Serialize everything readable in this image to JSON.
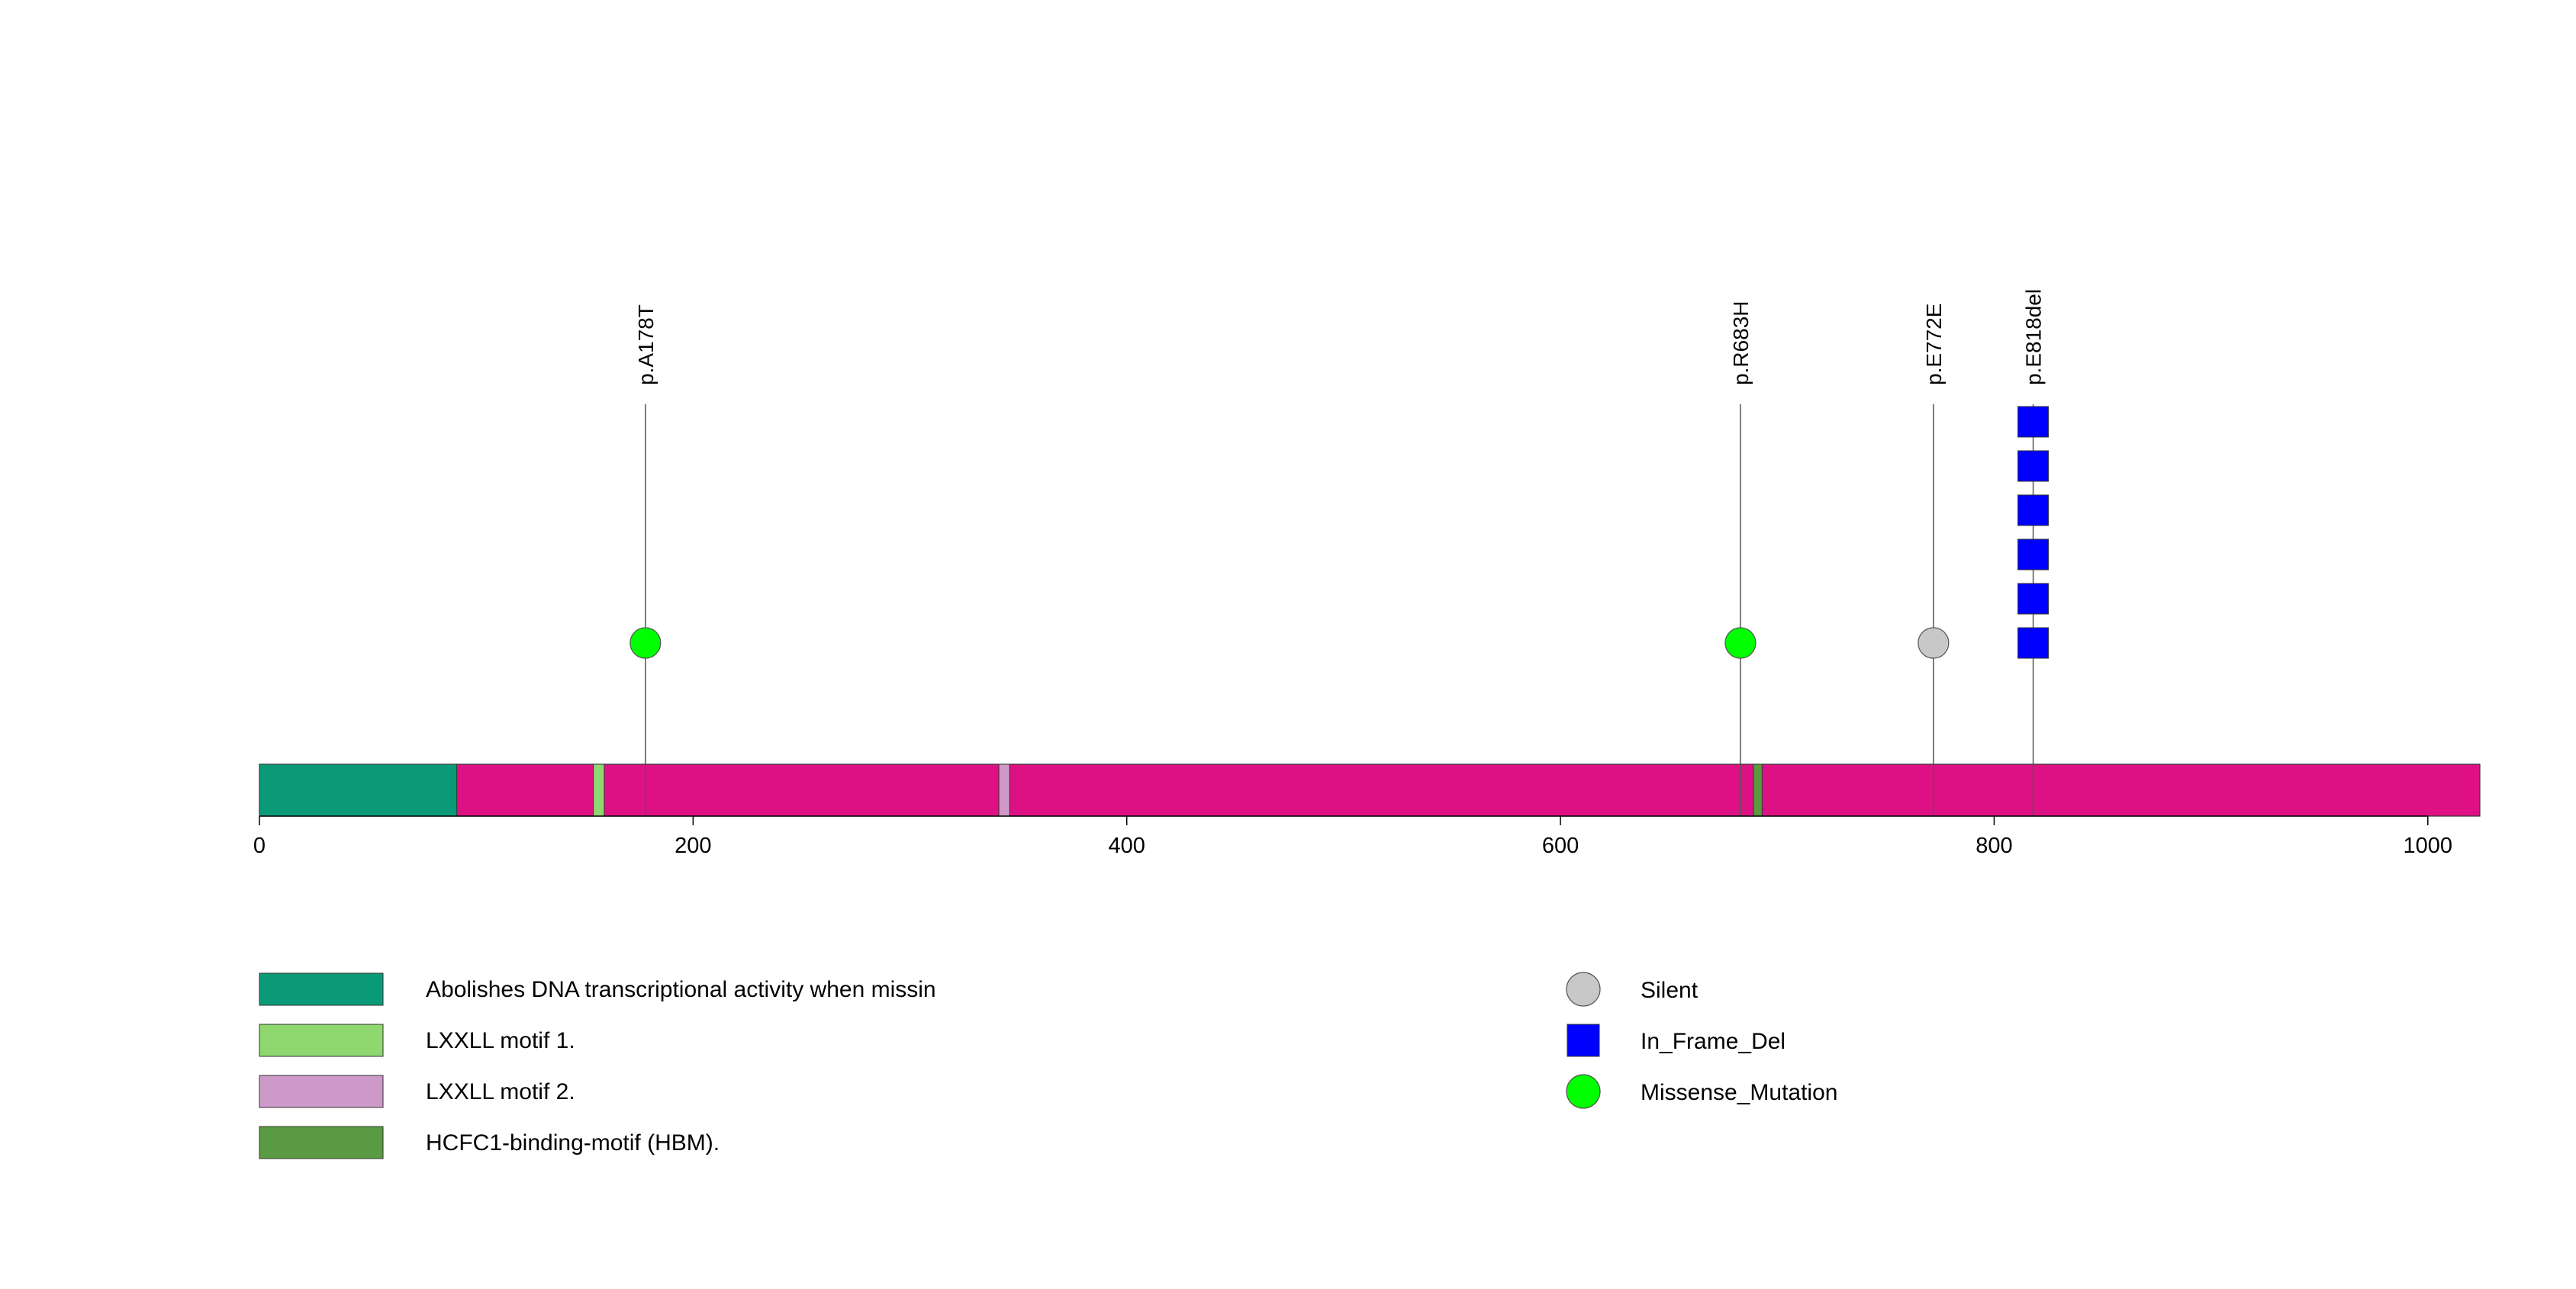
{
  "chart_data": {
    "type": "lollipop",
    "protein_length": 1024,
    "x_axis": {
      "ticks": [
        0,
        200,
        400,
        600,
        800,
        1000
      ],
      "tick_labels": [
        "0",
        "200",
        "400",
        "600",
        "800",
        "1000"
      ]
    },
    "backbone_color": "#DE1184",
    "domains": [
      {
        "name": "Abolishes DNA transcriptional activity when missin",
        "start": 1,
        "end": 91,
        "color": "#0A9A78"
      },
      {
        "name": "LXXLL motif 1.",
        "start": 155,
        "end": 159,
        "color": "#8FD870"
      },
      {
        "name": "LXXLL motif 2.",
        "start": 342,
        "end": 346,
        "color": "#CC99C9"
      },
      {
        "name": "HCFC1-binding-motif (HBM).",
        "start": 690,
        "end": 693,
        "color": "#5A9A40"
      }
    ],
    "mutations": [
      {
        "label": "p.A178T",
        "position": 178,
        "count": 1,
        "type": "Missense_Mutation"
      },
      {
        "label": "p.R683H",
        "position": 683,
        "count": 1,
        "type": "Missense_Mutation"
      },
      {
        "label": "p.E772E",
        "position": 772,
        "count": 1,
        "type": "Silent"
      },
      {
        "label": "p.E818del",
        "position": 818,
        "count": 6,
        "type": "In_Frame_Del"
      }
    ],
    "mutation_types": [
      {
        "name": "Silent",
        "shape": "circle",
        "color": "#C8C8C8"
      },
      {
        "name": "In_Frame_Del",
        "shape": "square",
        "color": "#0000FF"
      },
      {
        "name": "Missense_Mutation",
        "shape": "circle",
        "color": "#00FF00"
      }
    ],
    "legend_placement": "bottom",
    "grid": false
  }
}
